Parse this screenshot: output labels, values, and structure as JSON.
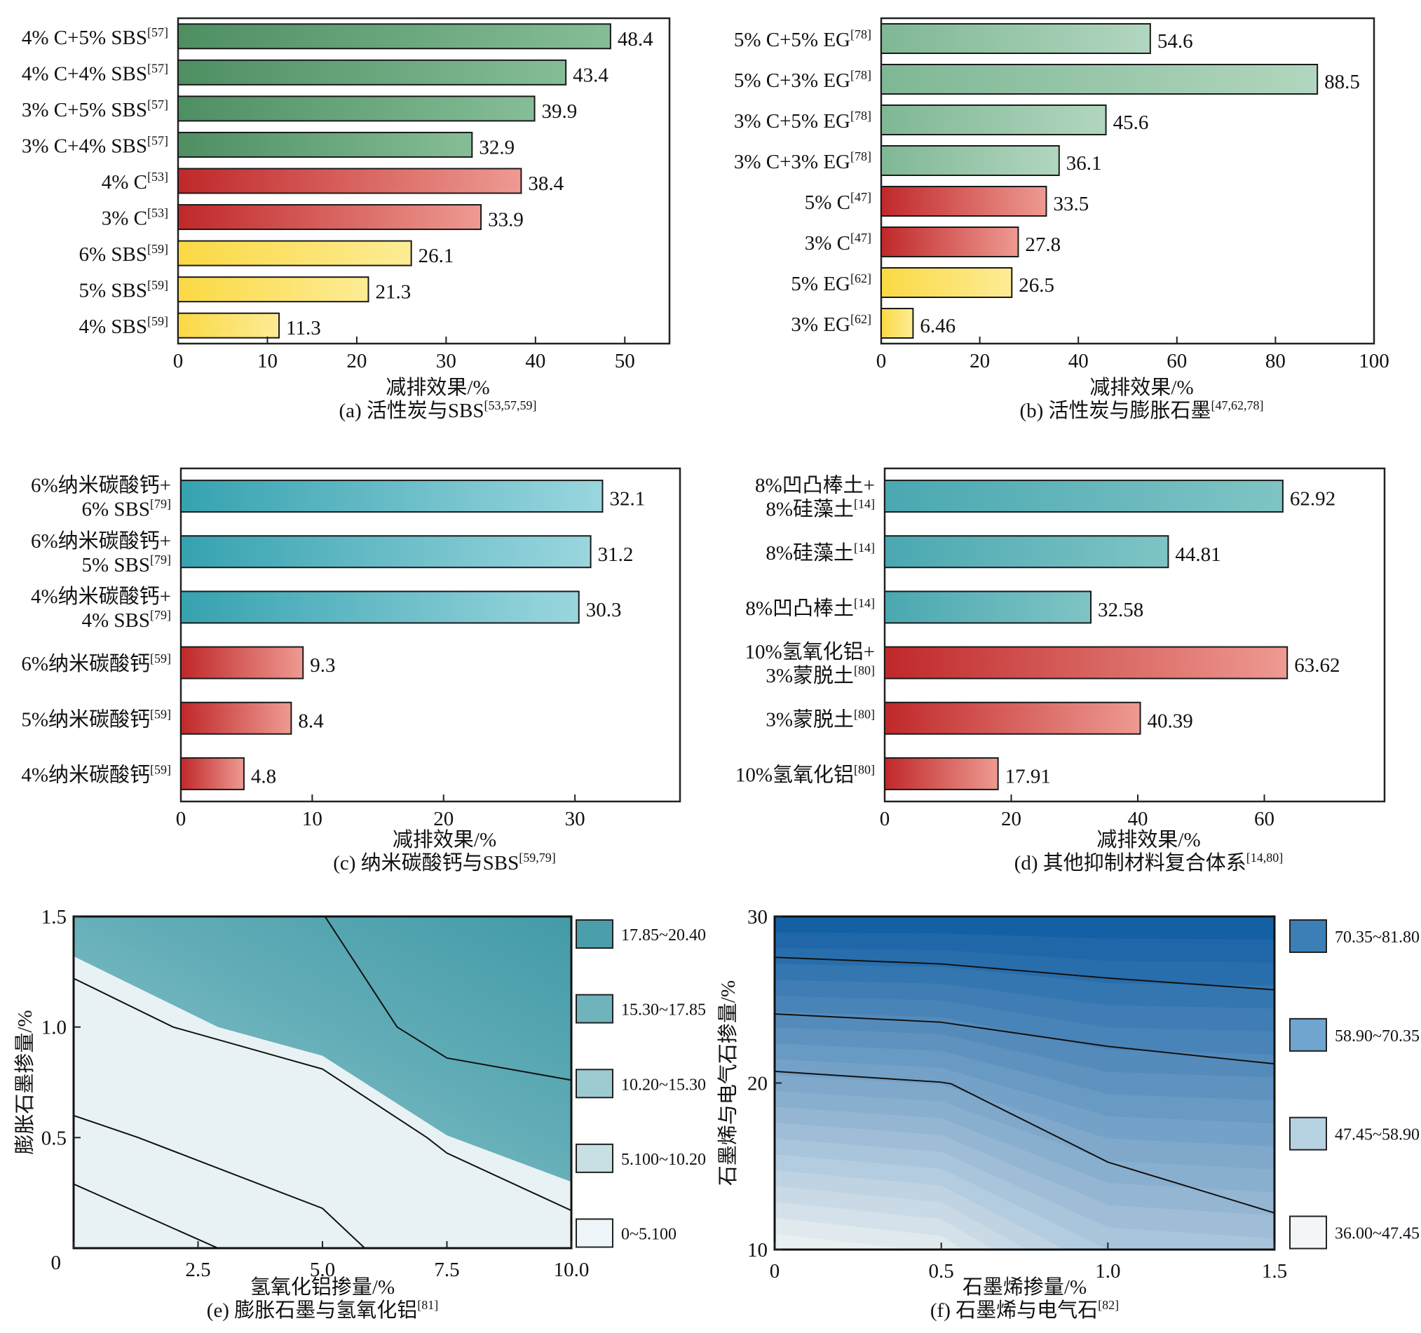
{
  "chart_data": [
    {
      "id": "a",
      "type": "bar",
      "orientation": "horizontal",
      "caption": "(a) 活性炭与SBS",
      "caption_ref": "[53,57,59]",
      "xlabel": "减排效果/%",
      "xlim": [
        0,
        55
      ],
      "xticks": [
        0,
        10,
        20,
        30,
        40,
        50
      ],
      "categories": [
        {
          "label": "4% C+5% SBS",
          "ref": "[57]",
          "value": 48.4,
          "value_label": "48.4",
          "group": "green"
        },
        {
          "label": "4% C+4% SBS",
          "ref": "[57]",
          "value": 43.4,
          "value_label": "43.4",
          "group": "green"
        },
        {
          "label": "3% C+5% SBS",
          "ref": "[57]",
          "value": 39.9,
          "value_label": "39.9",
          "group": "green"
        },
        {
          "label": "3% C+4% SBS",
          "ref": "[57]",
          "value": 32.9,
          "value_label": "32.9",
          "group": "green"
        },
        {
          "label": "4% C",
          "ref": "[53]",
          "value": 38.4,
          "value_label": "38.4",
          "group": "red"
        },
        {
          "label": "3% C",
          "ref": "[53]",
          "value": 33.9,
          "value_label": "33.9",
          "group": "red"
        },
        {
          "label": "6% SBS",
          "ref": "[59]",
          "value": 26.1,
          "value_label": "26.1",
          "group": "yellow"
        },
        {
          "label": "5% SBS",
          "ref": "[59]",
          "value": 21.3,
          "value_label": "21.3",
          "group": "yellow"
        },
        {
          "label": "4% SBS",
          "ref": "[59]",
          "value": 11.3,
          "value_label": "11.3",
          "group": "yellow"
        }
      ]
    },
    {
      "id": "b",
      "type": "bar",
      "orientation": "horizontal",
      "caption": "(b) 活性炭与膨胀石墨",
      "caption_ref": "[47,62,78]",
      "xlabel": "减排效果/%",
      "xlim": [
        0,
        100
      ],
      "xticks": [
        0,
        20,
        40,
        60,
        80,
        100
      ],
      "categories": [
        {
          "label": "5% C+5% EG",
          "ref": "[78]",
          "value": 54.6,
          "value_label": "54.6",
          "group": "lightgreen"
        },
        {
          "label": "5% C+3% EG",
          "ref": "[78]",
          "value": 88.5,
          "value_label": "88.5",
          "group": "lightgreen"
        },
        {
          "label": "3% C+5% EG",
          "ref": "[78]",
          "value": 45.6,
          "value_label": "45.6",
          "group": "lightgreen"
        },
        {
          "label": "3% C+3% EG",
          "ref": "[78]",
          "value": 36.1,
          "value_label": "36.1",
          "group": "lightgreen"
        },
        {
          "label": "5% C",
          "ref": "[47]",
          "value": 33.5,
          "value_label": "33.5",
          "group": "red"
        },
        {
          "label": "3% C",
          "ref": "[47]",
          "value": 27.8,
          "value_label": "27.8",
          "group": "red"
        },
        {
          "label": "5% EG",
          "ref": "[62]",
          "value": 26.5,
          "value_label": "26.5",
          "group": "yellow"
        },
        {
          "label": "3% EG",
          "ref": "[62]",
          "value": 6.46,
          "value_label": "6.46",
          "group": "yellow"
        }
      ]
    },
    {
      "id": "c",
      "type": "bar",
      "orientation": "horizontal",
      "caption": "(c) 纳米碳酸钙与SBS",
      "caption_ref": "[59,79]",
      "xlabel": "减排效果/%",
      "xlim": [
        0,
        38
      ],
      "xticks": [
        0,
        10,
        20,
        30
      ],
      "categories": [
        {
          "label": "6%纳米碳酸钙+",
          "label2": "6% SBS",
          "ref": "[79]",
          "value": 32.1,
          "value_label": "32.1",
          "group": "teal"
        },
        {
          "label": "6%纳米碳酸钙+",
          "label2": "5% SBS",
          "ref": "[79]",
          "value": 31.2,
          "value_label": "31.2",
          "group": "teal"
        },
        {
          "label": "4%纳米碳酸钙+",
          "label2": "4% SBS",
          "ref": "[79]",
          "value": 30.3,
          "value_label": "30.3",
          "group": "teal"
        },
        {
          "label": "6%纳米碳酸钙",
          "ref": "[59]",
          "value": 9.3,
          "value_label": "9.3",
          "group": "red"
        },
        {
          "label": "5%纳米碳酸钙",
          "ref": "[59]",
          "value": 8.4,
          "value_label": "8.4",
          "group": "red"
        },
        {
          "label": "4%纳米碳酸钙",
          "ref": "[59]",
          "value": 4.8,
          "value_label": "4.8",
          "group": "red"
        }
      ]
    },
    {
      "id": "d",
      "type": "bar",
      "orientation": "horizontal",
      "caption": "(d) 其他抑制材料复合体系",
      "caption_ref": "[14,80]",
      "xlabel": "减排效果/%",
      "xlim": [
        0,
        79
      ],
      "xticks": [
        0,
        20,
        40,
        60
      ],
      "categories": [
        {
          "label": "8%凹凸棒土+",
          "label2": "8%硅藻土",
          "ref": "[14]",
          "value": 62.92,
          "value_label": "62.92",
          "group": "teal2"
        },
        {
          "label": "8%硅藻土",
          "ref": "[14]",
          "value": 44.81,
          "value_label": "44.81",
          "group": "teal2"
        },
        {
          "label": "8%凹凸棒土",
          "ref": "[14]",
          "value": 32.58,
          "value_label": "32.58",
          "group": "teal2"
        },
        {
          "label": "10%氢氧化铝+",
          "label2": "3%蒙脱土",
          "ref": "[80]",
          "value": 63.62,
          "value_label": "63.62",
          "group": "red"
        },
        {
          "label": "3%蒙脱土",
          "ref": "[80]",
          "value": 40.39,
          "value_label": "40.39",
          "group": "red"
        },
        {
          "label": "10%氢氧化铝",
          "ref": "[80]",
          "value": 17.91,
          "value_label": "17.91",
          "group": "red"
        }
      ]
    },
    {
      "id": "e",
      "type": "heatmap",
      "subtype": "contour",
      "caption": "(e) 膨胀石墨与氢氧化铝",
      "caption_ref": "[81]",
      "xlabel": "氢氧化铝掺量/%",
      "ylabel": "膨胀石墨掺量/%",
      "xlim": [
        0,
        10
      ],
      "ylim": [
        0,
        1.5
      ],
      "xticks": [
        "0",
        "2.5",
        "5.0",
        "7.5",
        "10.0"
      ],
      "xtick_values": [
        0,
        2.5,
        5,
        7.5,
        10
      ],
      "yticks": [
        "0.5",
        "1.0",
        "1.5"
      ],
      "ytick_values": [
        0.5,
        1.0,
        1.5
      ],
      "origin_label": "0",
      "legend": [
        {
          "label": "17.85~20.40",
          "color": "#4a9fab"
        },
        {
          "label": "15.30~17.85",
          "color": "#6fb3bc"
        },
        {
          "label": "10.20~15.30",
          "color": "#9ccbd2"
        },
        {
          "label": "5.100~10.20",
          "color": "#c6e0e4"
        },
        {
          "label": "0~5.100",
          "color": "#eef5f8"
        }
      ],
      "contour_lines": [
        [
          [
            0,
            0.29
          ],
          [
            2.9,
            0
          ]
        ],
        [
          [
            0,
            0.6
          ],
          [
            1.3,
            0.5
          ],
          [
            5.0,
            0.18
          ],
          [
            5.85,
            0
          ]
        ],
        [
          [
            0,
            1.22
          ],
          [
            2.0,
            1.0
          ],
          [
            5.0,
            0.81
          ],
          [
            7.1,
            0.5
          ],
          [
            7.5,
            0.43
          ],
          [
            10.0,
            0.17
          ]
        ],
        [
          [
            5.05,
            1.5
          ],
          [
            6.5,
            1.0
          ],
          [
            7.5,
            0.86
          ],
          [
            10.0,
            0.76
          ]
        ]
      ],
      "fill_boundary": [
        [
          0,
          1.32
        ],
        [
          2.9,
          1.0
        ],
        [
          5.0,
          0.87
        ],
        [
          7.5,
          0.51
        ],
        [
          10.0,
          0.3
        ]
      ]
    },
    {
      "id": "f",
      "type": "heatmap",
      "subtype": "contour",
      "caption": "(f) 石墨烯与电气石",
      "caption_ref": "[82]",
      "xlabel": "石墨烯掺量/%",
      "ylabel": "石墨烯与电气石掺量/%",
      "xlim": [
        0,
        1.5
      ],
      "ylim": [
        10,
        30
      ],
      "xticks": [
        "0",
        "0.5",
        "1.0",
        "1.5"
      ],
      "xtick_values": [
        0,
        0.5,
        1.0,
        1.5
      ],
      "yticks": [
        "10",
        "20",
        "30"
      ],
      "ytick_values": [
        10,
        20,
        30
      ],
      "legend": [
        {
          "label": "70.35~81.80",
          "color": "#3b7fb6"
        },
        {
          "label": "58.90~70.35",
          "color": "#6fa5cf"
        },
        {
          "label": "47.45~58.90",
          "color": "#b7d2e3"
        },
        {
          "label": "36.00~47.45",
          "color": "#f2f6f6"
        }
      ],
      "contour_lines": [
        [
          [
            0,
            27.55
          ],
          [
            0.5,
            27.15
          ],
          [
            1.0,
            26.3
          ],
          [
            1.5,
            25.6
          ]
        ],
        [
          [
            0,
            24.15
          ],
          [
            0.5,
            23.65
          ],
          [
            1.0,
            22.2
          ],
          [
            1.5,
            21.15
          ]
        ],
        [
          [
            0,
            20.7
          ],
          [
            0.5,
            20.05
          ],
          [
            0.53,
            19.95
          ],
          [
            1.0,
            15.25
          ],
          [
            1.5,
            12.2
          ]
        ]
      ]
    }
  ],
  "colors": {
    "green": [
      "#4e8f62",
      "#85bd97"
    ],
    "lightgreen": [
      "#7fb795",
      "#b2d6bf"
    ],
    "red": [
      "#c0282a",
      "#ee9a92"
    ],
    "yellow": [
      "#fbd944",
      "#fcec95"
    ],
    "teal": [
      "#36a2b0",
      "#9ad6de"
    ],
    "teal2": [
      "#4aa8b1",
      "#7fc4c5"
    ]
  }
}
